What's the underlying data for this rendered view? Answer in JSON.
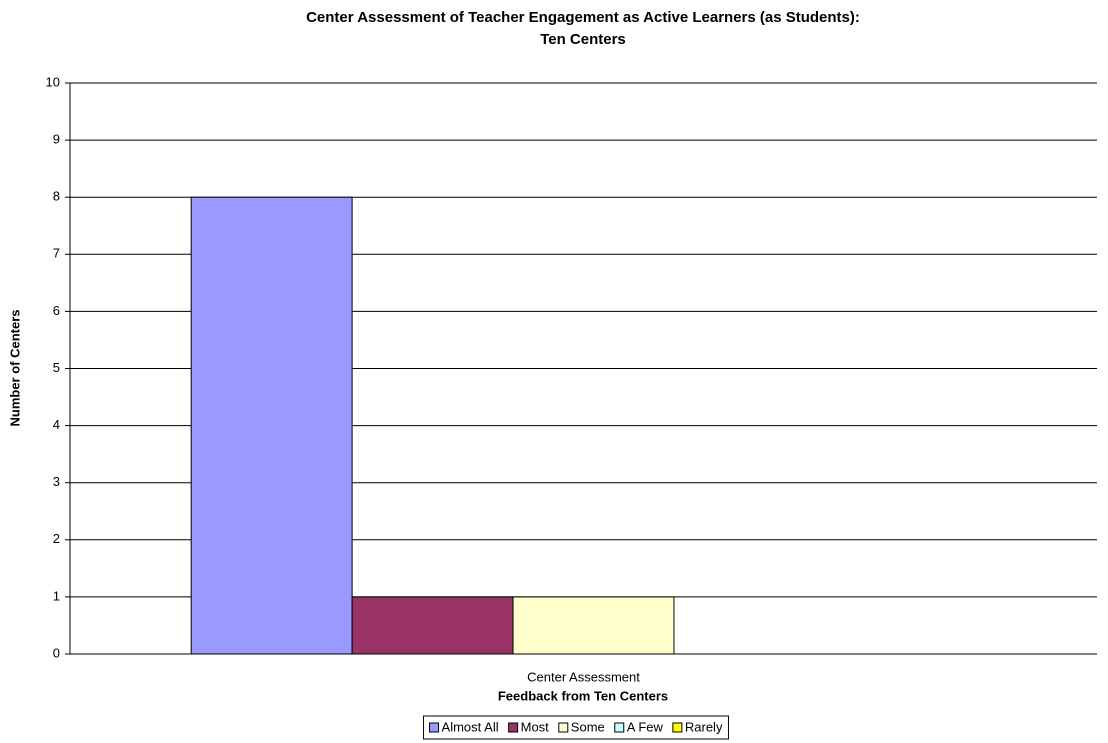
{
  "chart_data": {
    "type": "bar",
    "title": "Center Assessment of Teacher Engagement as Active Learners (as Students):",
    "subtitle": "Ten Centers",
    "x_label": "Feedback from Ten Centers",
    "y_label": "Number of Centers",
    "categories": [
      "Center Assessment"
    ],
    "series": [
      {
        "name": "Almost All",
        "color": "#9999ff",
        "values": [
          8
        ]
      },
      {
        "name": "Most",
        "color": "#993366",
        "values": [
          1
        ]
      },
      {
        "name": "Some",
        "color": "#ffffcc",
        "values": [
          1
        ]
      },
      {
        "name": "A Few",
        "color": "#ccffff",
        "values": [
          0
        ]
      },
      {
        "name": "Rarely",
        "color": "#ffff00",
        "values": [
          0
        ]
      }
    ],
    "ylim": [
      0,
      10
    ],
    "yticks": [
      0,
      1,
      2,
      3,
      4,
      5,
      6,
      7,
      8,
      9,
      10
    ],
    "grid": true,
    "legend": "bottom"
  }
}
